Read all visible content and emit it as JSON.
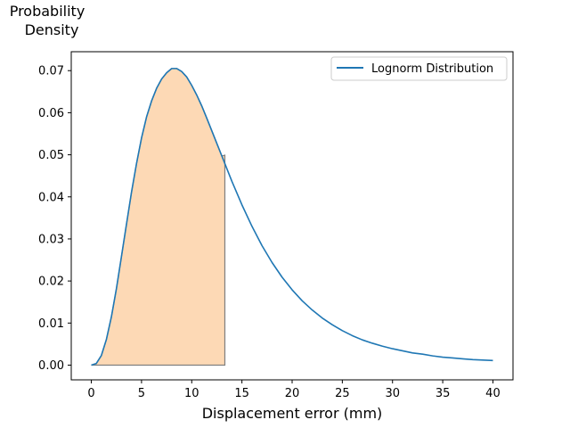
{
  "chart_data": {
    "type": "line",
    "title": "",
    "xlabel": "Displacement error (mm)",
    "ylabel_lines": [
      "Probability",
      "Density"
    ],
    "xlim": [
      -2,
      42
    ],
    "ylim": [
      -0.0035,
      0.0745
    ],
    "xticks": [
      0,
      5,
      10,
      15,
      20,
      25,
      30,
      35,
      40
    ],
    "yticks": [
      0.0,
      0.01,
      0.02,
      0.03,
      0.04,
      0.05,
      0.06,
      0.07
    ],
    "ytick_labels": [
      "0.00",
      "0.01",
      "0.02",
      "0.03",
      "0.04",
      "0.05",
      "0.06",
      "0.07"
    ],
    "grid": false,
    "legend": {
      "position": "top-right",
      "entries": [
        "Lognorm Distribution"
      ]
    },
    "series": [
      {
        "name": "Lognorm Distribution",
        "color": "#1f77b4",
        "x": [
          0,
          0.5,
          1,
          1.5,
          2,
          2.5,
          3,
          3.5,
          4,
          4.5,
          5,
          5.5,
          6,
          6.5,
          7,
          7.5,
          8,
          8.5,
          9,
          9.5,
          10,
          10.5,
          11,
          11.5,
          12,
          12.5,
          13,
          13.5,
          14,
          15,
          16,
          17,
          18,
          19,
          20,
          21,
          22,
          23,
          24,
          25,
          26,
          27,
          28,
          29,
          30,
          31,
          32,
          33,
          34,
          35,
          36,
          37,
          38,
          39,
          40
        ],
        "y": [
          0.0,
          0.0004,
          0.0023,
          0.0061,
          0.0115,
          0.0182,
          0.0258,
          0.0335,
          0.0411,
          0.0479,
          0.054,
          0.059,
          0.0628,
          0.0658,
          0.068,
          0.0695,
          0.0705,
          0.0705,
          0.0698,
          0.0685,
          0.0665,
          0.0642,
          0.0616,
          0.0587,
          0.0557,
          0.0527,
          0.0497,
          0.0467,
          0.0437,
          0.0381,
          0.033,
          0.0284,
          0.0244,
          0.0209,
          0.0179,
          0.0153,
          0.0131,
          0.0112,
          0.0096,
          0.0082,
          0.007,
          0.006,
          0.0052,
          0.0045,
          0.0039,
          0.0034,
          0.0029,
          0.0026,
          0.0022,
          0.0019,
          0.0017,
          0.0015,
          0.0013,
          0.0012,
          0.0011
        ]
      }
    ],
    "shaded_region": {
      "x_from": 0,
      "x_to": 13.3,
      "y_at_end": 0.0499,
      "fill": "#fdd9b5",
      "edge": "#7f7f7f"
    }
  }
}
